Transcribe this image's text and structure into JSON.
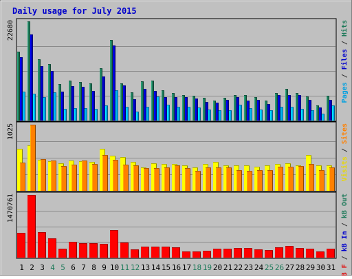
{
  "chart_data": {
    "type": "bar",
    "title": "Daily usage for July 2015",
    "categories": [
      "1",
      "2",
      "3",
      "4",
      "5",
      "6",
      "7",
      "8",
      "9",
      "10",
      "11",
      "12",
      "13",
      "14",
      "15",
      "16",
      "17",
      "18",
      "19",
      "20",
      "21",
      "22",
      "23",
      "24",
      "25",
      "26",
      "27",
      "28",
      "29",
      "30",
      "31"
    ],
    "weekend_days": [
      "4",
      "5",
      "11",
      "12",
      "18",
      "19",
      "25",
      "26"
    ],
    "panels": [
      {
        "ymax_label": "22680",
        "ymax": 22680,
        "right_labels": [
          {
            "text": "Pages",
            "color": "#00a0e0"
          },
          {
            "text": " / ",
            "color": "#333333"
          },
          {
            "text": "Files",
            "color": "#0000cc"
          },
          {
            "text": " / ",
            "color": "#333333"
          },
          {
            "text": "Hits",
            "color": "#1e7a5a"
          }
        ],
        "series": [
          {
            "name": "Hits",
            "color": "#1e7a5a",
            "values": [
              15700,
              22680,
              14000,
              12900,
              8400,
              9100,
              8800,
              8500,
              12000,
              18500,
              8500,
              6500,
              9000,
              9200,
              6900,
              6300,
              5900,
              5600,
              5200,
              4500,
              5200,
              5900,
              5900,
              5400,
              4500,
              6300,
              7200,
              6300,
              5500,
              3400,
              5700
            ]
          },
          {
            "name": "Files",
            "color": "#0000cc",
            "values": [
              14500,
              19700,
              12500,
              11300,
              6600,
              7800,
              7700,
              6700,
              10100,
              17200,
              8000,
              4900,
              7300,
              6700,
              5300,
              5400,
              5400,
              5000,
              4200,
              4100,
              4700,
              5300,
              4600,
              4700,
              3800,
              5800,
              5800,
              5800,
              4800,
              3000,
              4800
            ]
          },
          {
            "name": "Pages",
            "color": "#00b0f0",
            "values": [
              6600,
              6100,
              5300,
              6400,
              2700,
              2800,
              2800,
              2600,
              3400,
              7000,
              3200,
              2100,
              3100,
              5500,
              3600,
              3100,
              3200,
              3000,
              2500,
              2300,
              2400,
              3700,
              2900,
              2500,
              2300,
              3200,
              3100,
              2600,
              2400,
              1600,
              3400
            ]
          }
        ]
      },
      {
        "ymax_label": "1025",
        "ymax": 1025,
        "right_labels": [
          {
            "text": "Visits",
            "color": "#e8d800"
          },
          {
            "text": " / ",
            "color": "#333333"
          },
          {
            "text": "Sites",
            "color": "#ff8000"
          }
        ],
        "series": [
          {
            "name": "Visits",
            "color": "#ffff00",
            "values": [
              655,
              700,
              480,
              460,
              430,
              470,
              455,
              450,
              650,
              540,
              520,
              445,
              360,
              430,
              420,
              420,
              390,
              360,
              420,
              450,
              390,
              400,
              390,
              370,
              400,
              420,
              430,
              395,
              550,
              390,
              390
            ]
          },
          {
            "name": "Sites",
            "color": "#ff8000",
            "values": [
              440,
              1025,
              490,
              470,
              385,
              405,
              475,
              420,
              560,
              480,
              410,
              390,
              355,
              350,
              360,
              400,
              355,
              305,
              360,
              360,
              360,
              320,
              305,
              320,
              325,
              375,
              370,
              380,
              415,
              325,
              360
            ]
          }
        ]
      },
      {
        "ymax_label": "1470761",
        "ymax": 1470761,
        "right_labels": [
          {
            "text": "kB F",
            "color": "#e00000"
          },
          {
            "text": " / ",
            "color": "#333333"
          },
          {
            "text": "kB In",
            "color": "#0000cc"
          },
          {
            "text": " / ",
            "color": "#333333"
          },
          {
            "text": "kB Out",
            "color": "#1e7a5a"
          }
        ],
        "series": [
          {
            "name": "kB F",
            "color": "#ff0000",
            "values": [
              581000,
              1470761,
              600000,
              450000,
              210000,
              370000,
              340000,
              340000,
              330000,
              640000,
              350000,
              200000,
              260000,
              260000,
              260000,
              250000,
              140000,
              150000,
              160000,
              210000,
              210000,
              230000,
              230000,
              200000,
              170000,
              250000,
              270000,
              220000,
              210000,
              140000,
              210000
            ]
          }
        ]
      }
    ]
  }
}
